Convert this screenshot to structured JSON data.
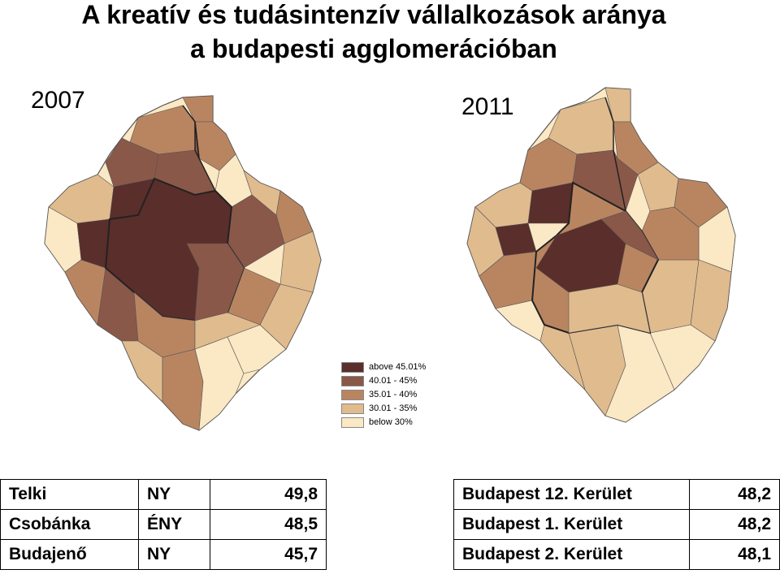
{
  "title": {
    "line1": "A kreatív és tudásintenzív vállalkozások aránya",
    "line2": "a budapesti agglomerációban"
  },
  "maps": {
    "left": {
      "year": "2007"
    },
    "right": {
      "year": "2011"
    }
  },
  "legend": {
    "items": [
      {
        "label": "above 45.01%",
        "color": "#5a2e2a"
      },
      {
        "label": "40.01 - 45%",
        "color": "#8a5848"
      },
      {
        "label": "35.01 - 40%",
        "color": "#b98561"
      },
      {
        "label": "30.01 - 35%",
        "color": "#e0bb8e"
      },
      {
        "label": "below 30%",
        "color": "#fbe8c4"
      }
    ]
  },
  "table_left": {
    "rows": [
      {
        "name": "Telki",
        "direction": "NY",
        "value": "49,8"
      },
      {
        "name": "Csobánka",
        "direction": "ÉNY",
        "value": "48,5"
      },
      {
        "name": "Budajenő",
        "direction": "NY",
        "value": "45,7"
      }
    ]
  },
  "table_right": {
    "rows": [
      {
        "name": "Budapest 12. Kerület",
        "value": "48,2"
      },
      {
        "name": "Budapest 1. Kerület",
        "value": "48,2"
      },
      {
        "name": "Budapest 2. Kerület",
        "value": "48,1"
      }
    ]
  }
}
